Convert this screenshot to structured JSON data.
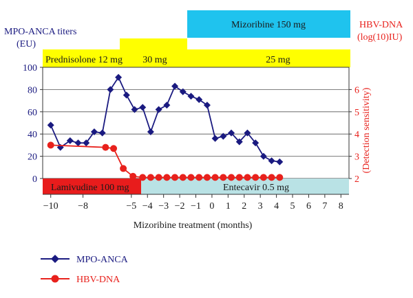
{
  "colors": {
    "mpo": "#1a1a80",
    "hbv": "#e8211c",
    "left_axis_text": "#1a1a80",
    "right_axis_text": "#e8211c",
    "prednisolone_band": "#ffff00",
    "mizoribine_band": "#1fc3ee",
    "lamivudine_band": "#e81c1c",
    "entecavir_band": "#b9e2e5"
  },
  "labels": {
    "left_axis_title_1": "MPO-ANCA titers",
    "left_axis_title_2": "(EU)",
    "right_axis_title_1": "HBV-DNA",
    "right_axis_title_2": "(log(10)IU)",
    "right_axis_note": "(Detection sensitivity)",
    "x_axis_title": "Mizoribine treatment (months)",
    "mizoribine_band": "Mizoribine 150 mg",
    "prednisolone_12": "Prednisolone 12 mg",
    "prednisolone_30": "30 mg",
    "prednisolone_25": "25 mg",
    "lamivudine_band": "Lamivudine 100 mg",
    "entecavir_band": "Entecavir 0.5 mg"
  },
  "chart_data": {
    "type": "line",
    "xlim": [
      -10.5,
      8.5
    ],
    "x_ticks": [
      -10,
      -8,
      -5,
      -4,
      -3,
      -2,
      -1,
      0,
      1,
      2,
      3,
      4,
      5,
      6,
      7,
      8
    ],
    "x_tick_labels": [
      "−10",
      "−8",
      "−5",
      "−4",
      "−3",
      "−2",
      "−1",
      "0",
      "1",
      "2",
      "3",
      "4",
      "5",
      "6",
      "7",
      "8"
    ],
    "ylim_left": [
      0,
      100
    ],
    "y_ticks_left": [
      0,
      20,
      40,
      60,
      80,
      100
    ],
    "ylim_right": [
      2,
      7
    ],
    "y_ticks_right": [
      2,
      3,
      4,
      5,
      6
    ],
    "series": [
      {
        "name": "MPO-ANCA",
        "axis": "left",
        "marker": "diamond",
        "points": [
          [
            -10,
            48
          ],
          [
            -9.4,
            28
          ],
          [
            -8.8,
            34
          ],
          [
            -8.3,
            32
          ],
          [
            -7.8,
            32
          ],
          [
            -7.3,
            42
          ],
          [
            -6.8,
            41
          ],
          [
            -6.3,
            80
          ],
          [
            -5.8,
            91
          ],
          [
            -5.3,
            75
          ],
          [
            -4.8,
            62
          ],
          [
            -4.3,
            64
          ],
          [
            -3.8,
            42
          ],
          [
            -3.3,
            62
          ],
          [
            -2.8,
            66
          ],
          [
            -2.3,
            83
          ],
          [
            -1.8,
            78
          ],
          [
            -1.3,
            74
          ],
          [
            -0.8,
            71
          ],
          [
            -0.3,
            66
          ],
          [
            0.2,
            36
          ],
          [
            0.7,
            38
          ],
          [
            1.2,
            41
          ],
          [
            1.7,
            33
          ],
          [
            2.2,
            41
          ],
          [
            2.7,
            32
          ],
          [
            3.2,
            20
          ],
          [
            3.7,
            16
          ],
          [
            4.2,
            15
          ]
        ]
      },
      {
        "name": "HBV-DNA",
        "axis": "right",
        "marker": "circle",
        "points": [
          [
            -10,
            3.5
          ],
          [
            -6.6,
            3.4
          ],
          [
            -6.1,
            3.35
          ],
          [
            -5.5,
            2.45
          ],
          [
            -4.9,
            2.1
          ],
          [
            -4.3,
            2.05
          ],
          [
            -3.8,
            2.05
          ],
          [
            -3.3,
            2.05
          ],
          [
            -2.8,
            2.05
          ],
          [
            -2.3,
            2.05
          ],
          [
            -1.8,
            2.05
          ],
          [
            -1.3,
            2.05
          ],
          [
            -0.8,
            2.05
          ],
          [
            -0.3,
            2.05
          ],
          [
            0.2,
            2.05
          ],
          [
            0.7,
            2.05
          ],
          [
            1.2,
            2.05
          ],
          [
            1.7,
            2.05
          ],
          [
            2.2,
            2.05
          ],
          [
            2.7,
            2.05
          ],
          [
            3.2,
            2.05
          ],
          [
            3.7,
            2.05
          ],
          [
            4.2,
            2.05
          ]
        ]
      }
    ]
  }
}
